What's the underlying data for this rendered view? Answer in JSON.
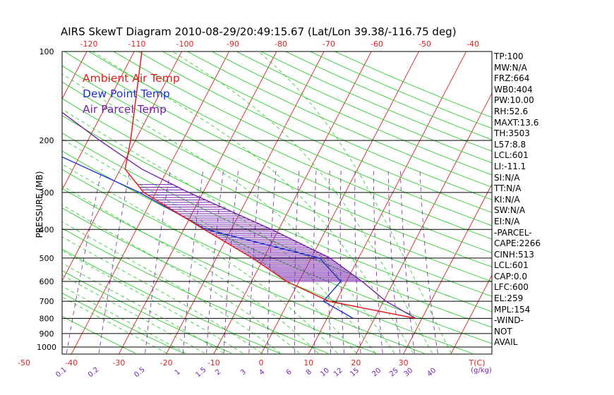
{
  "title": "AIRS SkewT Diagram 2010-08-29/20:49:15.67 (Lat/Lon 39.38/-116.75 deg)",
  "legend": [
    {
      "label": "Ambient Air Temp",
      "color": "#dd2222"
    },
    {
      "label": "Dew Point Temp",
      "color": "#2233cc"
    },
    {
      "label": "Air Parcel Temp",
      "color": "#7722aa"
    }
  ],
  "side_panel": [
    "TP:100",
    "MW:N/A",
    "FRZ:664",
    "WB0:404",
    "PW:10.00",
    "RH:52.6",
    "MAXT:13.6",
    "TH:3503",
    "L57:8.8",
    "LCL:601",
    "LI:-11.1",
    "SI:N/A",
    "TT:N/A",
    "KI:N/A",
    "SW:N/A",
    "EI:N/A",
    "-PARCEL-",
    "CAPE:2266",
    "CINH:513",
    "LCL:601",
    "CAP:0.0",
    "LFC:600",
    "EL:259",
    "MPL:154",
    "-WIND-",
    "NOT",
    "AVAIL"
  ],
  "chart_data": {
    "type": "line",
    "title": "AIRS SkewT Diagram 2010-08-29/20:49:15.67 (Lat/Lon 39.38/-116.75 deg)",
    "ylabel": "PRESSURE (MB)",
    "xlabel": "T(C)",
    "mixing_ratio_label": "(g/kg)",
    "pressure_ticks": [
      100,
      200,
      300,
      400,
      500,
      600,
      700,
      800,
      900,
      1000
    ],
    "bottom_temp_ticks": [
      -50,
      -40,
      -30,
      -20,
      -10,
      0,
      10,
      20,
      30
    ],
    "top_temp_ticks": [
      -120,
      -110,
      -100,
      -90,
      -80,
      -70,
      -60,
      -50,
      -40
    ],
    "mixing_ratio_ticks": [
      "0.1",
      "0.2",
      "0.5",
      "1",
      "1.5",
      "2",
      "3",
      "4",
      "6",
      "8",
      "10",
      "12",
      "15",
      "20",
      "25",
      "30",
      "40"
    ],
    "grid": true,
    "colors": {
      "temperature": "#dd2222",
      "dewpoint": "#2233cc",
      "parcel": "#7722aa",
      "isotherm": "#dd2222",
      "dry_adiabat": "#22cc22",
      "moist_adiabat": "#22cc22",
      "mixing_ratio": "#7722aa",
      "isobar": "#000000"
    },
    "series": [
      {
        "name": "Ambient Air Temp",
        "points": [
          {
            "p": 800,
            "t": 28.7
          },
          {
            "p": 700,
            "t": 8.5
          },
          {
            "p": 600,
            "t": -2.6
          },
          {
            "p": 500,
            "t": -12.4
          },
          {
            "p": 400,
            "t": -25.7
          },
          {
            "p": 300,
            "t": -42.5
          },
          {
            "p": 250,
            "t": -49.0
          },
          {
            "p": 200,
            "t": -51.0
          },
          {
            "p": 100,
            "t": -58.4
          }
        ]
      },
      {
        "name": "Dew Point Temp",
        "points": [
          {
            "p": 800,
            "t": 15.5
          },
          {
            "p": 700,
            "t": 7.3
          },
          {
            "p": 600,
            "t": 8.8
          },
          {
            "p": 500,
            "t": 1.8
          },
          {
            "p": 400,
            "t": -25.3
          },
          {
            "p": 300,
            "t": -43.4
          },
          {
            "p": 200,
            "t": -73.0
          },
          {
            "p": 150,
            "t": -82.0
          },
          {
            "p": 100,
            "t": -88.0
          }
        ]
      },
      {
        "name": "Air Parcel Temp",
        "points": [
          {
            "p": 800,
            "t": 28.7
          },
          {
            "p": 700,
            "t": 20.5
          },
          {
            "p": 600,
            "t": 13.3
          },
          {
            "p": 500,
            "t": 4.0
          },
          {
            "p": 400,
            "t": -11.5
          },
          {
            "p": 300,
            "t": -33.0
          },
          {
            "p": 250,
            "t": -45.5
          },
          {
            "p": 200,
            "t": -57.5
          },
          {
            "p": 150,
            "t": -72.0
          },
          {
            "p": 100,
            "t": -87.0
          }
        ]
      }
    ]
  }
}
